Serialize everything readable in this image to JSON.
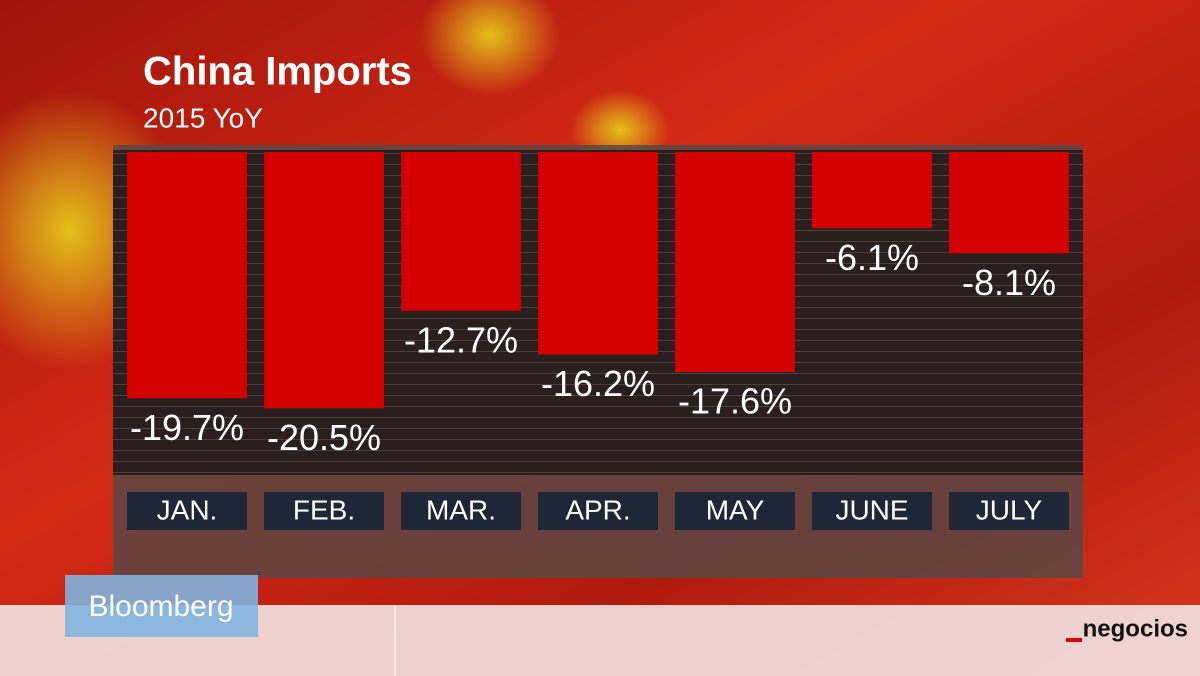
{
  "chart_data": {
    "type": "bar",
    "title": "China Imports",
    "subtitle": "2015 YoY",
    "categories": [
      "JAN.",
      "FEB.",
      "MAR.",
      "APR.",
      "MAY",
      "JUNE",
      "JULY"
    ],
    "values": [
      -19.7,
      -20.5,
      -12.7,
      -16.2,
      -17.6,
      -6.1,
      -8.1
    ],
    "value_labels": [
      "-19.7%",
      "-20.5%",
      "-12.7%",
      "-16.2%",
      "-17.6%",
      "-6.1%",
      "-8.1%"
    ],
    "color": "#d40000"
  },
  "branding": {
    "broadcaster": "Bloomberg",
    "source": "negocios"
  }
}
